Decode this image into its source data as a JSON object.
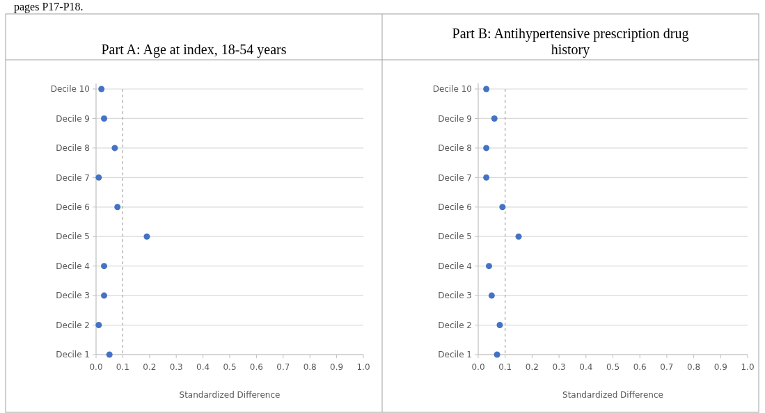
{
  "chart_data": [
    {
      "type": "scatter",
      "title": "Part A: Age at index, 18-54 years",
      "annotations": [
        "pages P17-P18."
      ],
      "orientation": "horizontal",
      "categories": [
        "Decile 10",
        "Decile 9",
        "Decile 8",
        "Decile 7",
        "Decile 6",
        "Decile 5",
        "Decile 4",
        "Decile 3",
        "Decile 2",
        "Decile 1"
      ],
      "values": [
        0.02,
        0.03,
        0.07,
        0.01,
        0.08,
        0.19,
        0.03,
        0.03,
        0.01,
        0.05
      ],
      "color": "#4472c4",
      "marker": "circle",
      "xlabel": "Standardized Difference",
      "xlim": [
        0,
        1
      ],
      "xticks": [
        "0.0",
        0.1,
        0.2,
        0.3,
        0.4,
        0.5,
        0.6,
        0.7,
        0.8,
        0.9,
        "1.0"
      ],
      "grid": "y",
      "ref_lines": [
        {
          "axis": "x",
          "value": 0.1,
          "line_style": "dashed",
          "color": "#a6a6a6"
        }
      ]
    },
    {
      "type": "scatter",
      "title": "Part B: Antihypertensive prescription drug history",
      "orientation": "horizontal",
      "categories": [
        "Decile 10",
        "Decile 9",
        "Decile 8",
        "Decile 7",
        "Decile 6",
        "Decile 5",
        "Decile 4",
        "Decile 3",
        "Decile 2",
        "Decile 1"
      ],
      "values": [
        0.03,
        0.06,
        0.03,
        0.03,
        0.09,
        0.15,
        0.04,
        0.05,
        0.08,
        0.07
      ],
      "color": "#4472c4",
      "marker": "circle",
      "xlabel": "Standardized Difference",
      "xlim": [
        0,
        1
      ],
      "xticks": [
        "0.0",
        0.1,
        0.2,
        0.3,
        0.4,
        0.5,
        0.6,
        0.7,
        0.8,
        0.9,
        "1.0"
      ],
      "grid": "y",
      "ref_lines": [
        {
          "axis": "x",
          "value": 0.1,
          "line_style": "dashed",
          "color": "#a6a6a6"
        }
      ]
    }
  ]
}
